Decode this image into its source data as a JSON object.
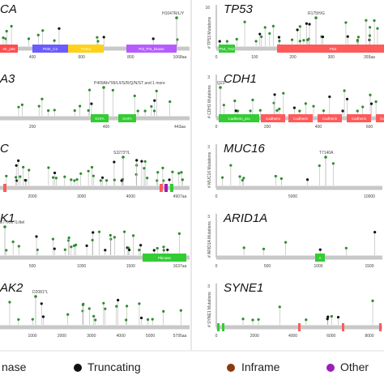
{
  "legend": [
    {
      "label": "nase",
      "color": "#2e8b2e"
    },
    {
      "label": "Truncating",
      "color": "#111111"
    },
    {
      "label": "Inframe",
      "color": "#8b3a0f"
    },
    {
      "label": "Other",
      "color": "#9b1fb5"
    }
  ],
  "panels": [
    {
      "title": "CA",
      "ylabel": "",
      "ticks": [
        "400",
        "600",
        "800",
        "1068aa"
      ],
      "annotation": "H1047R/L/Y",
      "domains": [
        {
          "label": "3K_p85",
          "color": "#ff4d4d"
        },
        {
          "label": "PI3K_C2",
          "color": "#6a5cff"
        },
        {
          "label": "PI3Ka",
          "color": "#ffd11a"
        },
        {
          "label": "PI3_PI4_kinase",
          "color": "#b65cff"
        }
      ]
    },
    {
      "title": "TP53",
      "ylabel": "# TP53 Mutations",
      "ymax": "16",
      "ticks": [
        "0",
        "100",
        "200",
        "300",
        "393aa"
      ],
      "annotation": "R175H/G",
      "domains": [
        {
          "label": "P53_TAD",
          "color": "#33cc33"
        },
        {
          "label": "P53",
          "color": "#ff5a5a"
        }
      ]
    },
    {
      "title": "A3",
      "ylabel": "",
      "ticks": [
        "200",
        "400",
        "443aa"
      ],
      "annotation": "P409Afs*99/L/I/S/R/Q/N/ST and 1 more",
      "domains": [
        {
          "label": "GATA",
          "color": "#33cc33"
        },
        {
          "label": "GATA",
          "color": "#33cc33"
        }
      ]
    },
    {
      "title": "CDH1",
      "ylabel": "# CDH1 Mutations",
      "ymax": "3",
      "ticks": [
        "0",
        "200",
        "400",
        "600"
      ],
      "annotation": "Q23*",
      "domains": [
        {
          "label": "Cadherin_pro",
          "color": "#33cc33"
        },
        {
          "label": "Cadherin",
          "color": "#ff5a5a"
        },
        {
          "label": "Cadherin",
          "color": "#ff5a5a"
        },
        {
          "label": "Cadherin",
          "color": "#ff5a5a"
        },
        {
          "label": "Cadherin",
          "color": "#ff5a5a"
        },
        {
          "label": "Ca",
          "color": "#ff5a5a"
        }
      ]
    },
    {
      "title": "C",
      "ylabel": "",
      "ticks": [
        "2000",
        "3000",
        "4000",
        "4907aa"
      ],
      "annotation": "S3273*/L",
      "domains": []
    },
    {
      "title": "MUC16",
      "ylabel": "# MUC16 Mutations",
      "ymax": "3",
      "ticks": [
        "0",
        "5000",
        "10000"
      ],
      "annotation": "T7140A",
      "domains": []
    },
    {
      "title": "K1",
      "ylabel": "",
      "ticks": [
        "500",
        "1000",
        "1500",
        "1637aa"
      ],
      "annotation": "E77Kfs*/L/del",
      "domains": [
        {
          "label": "Pkinase",
          "color": "#33cc33"
        }
      ]
    },
    {
      "title": "ARID1A",
      "ylabel": "# ARID1A Mutations",
      "ymax": "3",
      "ticks": [
        "0",
        "500",
        "1000",
        "1500"
      ],
      "annotation": "",
      "domains": [
        {
          "label": "A",
          "color": "#33cc33"
        }
      ]
    },
    {
      "title": "AK2",
      "ylabel": "",
      "ticks": [
        "1000",
        "2000",
        "3000",
        "4000",
        "5000",
        "5795aa"
      ],
      "annotation": "D2081*L",
      "domains": []
    },
    {
      "title": "SYNE1",
      "ylabel": "# SYNE1 Mutations",
      "ymax": "3",
      "ticks": [
        "0",
        "2000",
        "4000",
        "6000",
        "8000"
      ],
      "annotation": "",
      "domains": []
    }
  ]
}
